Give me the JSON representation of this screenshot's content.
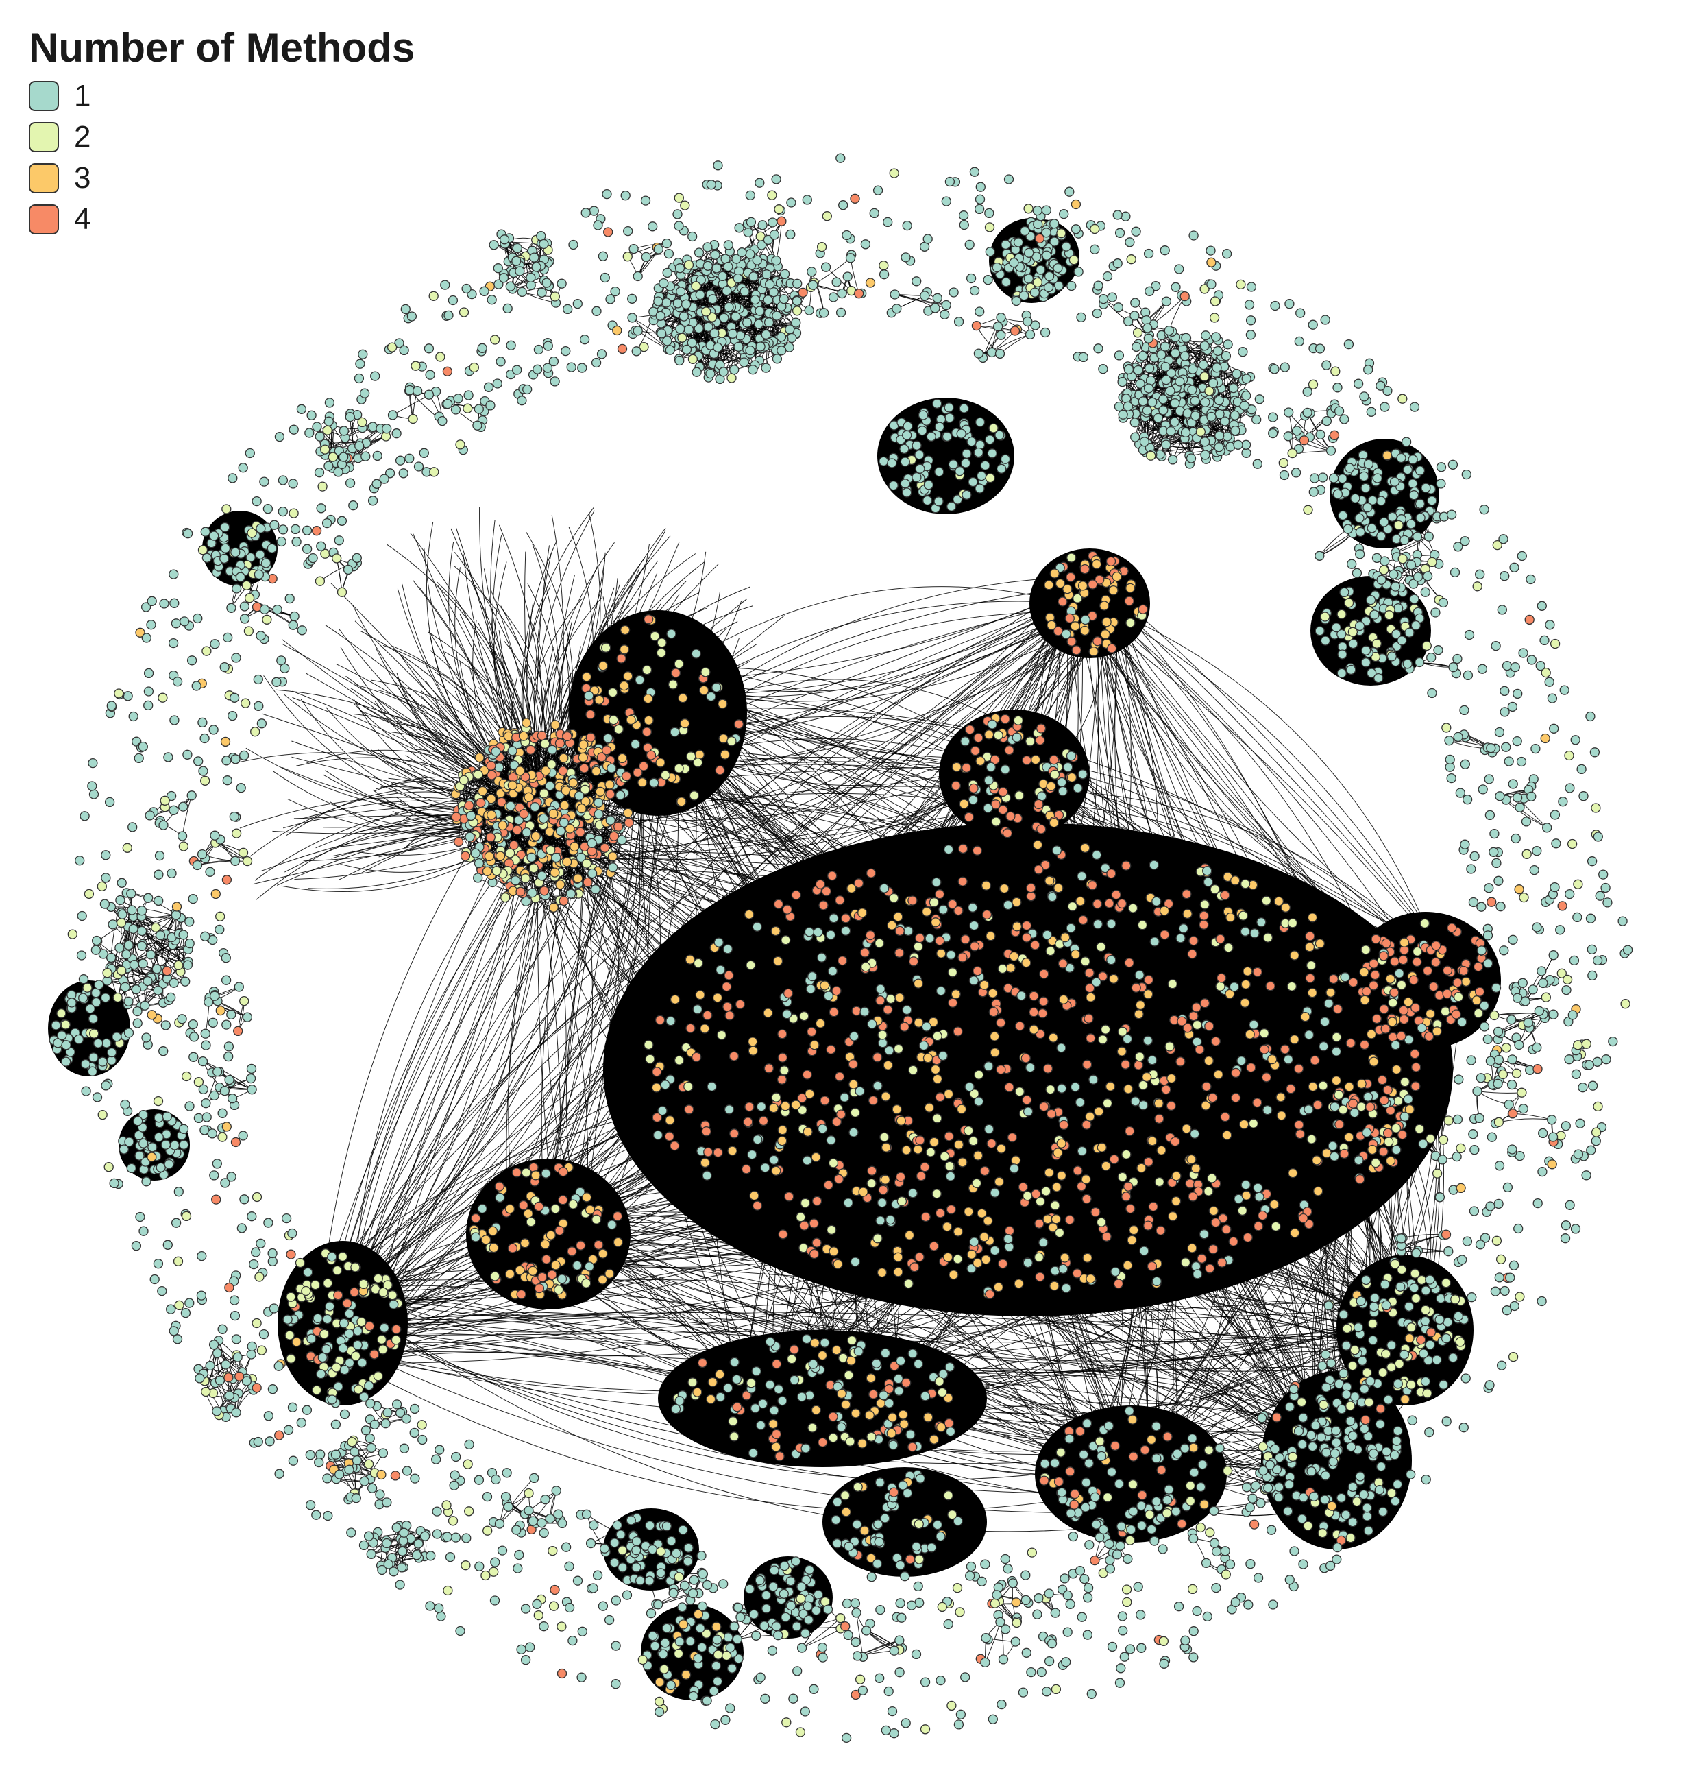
{
  "legend": {
    "title": "Number of Methods",
    "items": [
      {
        "label": "1",
        "color": "#a6d9cc"
      },
      {
        "label": "2",
        "color": "#e3f5b0"
      },
      {
        "label": "3",
        "color": "#fcc969"
      },
      {
        "label": "4",
        "color": "#f78a66"
      }
    ]
  },
  "colors": {
    "edge": "#000000",
    "node_stroke": "#333333",
    "background": "#ffffff"
  }
}
